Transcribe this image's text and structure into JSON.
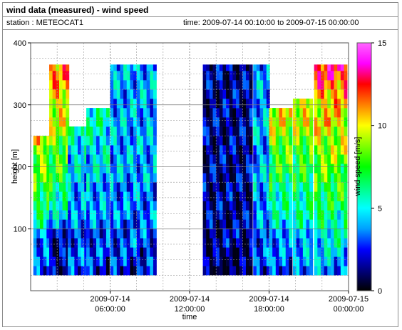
{
  "header": {
    "title": "wind data (measured) - wind speed",
    "station": "station : METEOCAT1",
    "time_range": "time: 2009-07-14 00:10:00 to 2009-07-15 00:00:00"
  },
  "chart_data": {
    "type": "heatmap",
    "xlabel": "time",
    "ylabel": "height [m]",
    "colorbar_label": "wind speed [m/s]",
    "x_ticks": [
      {
        "hours": 6,
        "line1": "2009-07-14",
        "line2": "06:00:00"
      },
      {
        "hours": 12,
        "line1": "2009-07-14",
        "line2": "12:00:00"
      },
      {
        "hours": 18,
        "line1": "2009-07-14",
        "line2": "18:00:00"
      },
      {
        "hours": 24,
        "line1": "2009-07-15",
        "line2": "00:00:00"
      }
    ],
    "xlim_hours": [
      0,
      24
    ],
    "ylim": [
      0,
      400
    ],
    "y_ticks": [
      100,
      200,
      300,
      400
    ],
    "colorbar_range": [
      0,
      15
    ],
    "colorbar_ticks": [
      0,
      5,
      10,
      15
    ],
    "grid": true,
    "colormap": [
      "#000000",
      "#000080",
      "#0000ff",
      "#00a0ff",
      "#00ffff",
      "#00ff80",
      "#00ff00",
      "#80ff00",
      "#ffff00",
      "#ff8000",
      "#ff0000",
      "#ff00ff",
      "#ff66ff"
    ],
    "heights_m": [
      40,
      55,
      70,
      85,
      100,
      115,
      130,
      145,
      160,
      175,
      190,
      205,
      220,
      235,
      250,
      265,
      280,
      295,
      310,
      325,
      340,
      355,
      365
    ],
    "segments": [
      {
        "start_h": 0.2,
        "end_h": 1.4,
        "top_m": 255,
        "bottom": [
          2.5,
          3,
          3.5,
          5,
          6,
          7,
          7.5,
          8,
          8.5,
          9.5,
          10.5,
          11,
          11.5,
          11.5,
          12,
          12
        ]
      },
      {
        "start_h": 1.4,
        "end_h": 2.8,
        "top_m": 365,
        "bottom": [
          1,
          1,
          1.5,
          2,
          3,
          4,
          5,
          6,
          6.5,
          7,
          7.5,
          8,
          8,
          8.5,
          9,
          9.5,
          10,
          10.5,
          10.5,
          11,
          11
        ]
      },
      {
        "start_h": 2.8,
        "end_h": 4.2,
        "top_m": 265,
        "bottom": [
          2.5,
          3,
          3,
          3.5,
          3.5,
          4,
          4,
          4.5,
          5,
          5,
          5.5,
          6,
          6,
          6.5,
          7
        ]
      },
      {
        "start_h": 4.2,
        "end_h": 6.0,
        "top_m": 305,
        "bottom": [
          2,
          2.5,
          3,
          3,
          3.5,
          3.5,
          4,
          4,
          4.5,
          4.5,
          5,
          5,
          5.5,
          5.5,
          6,
          6,
          6.5,
          7
        ]
      },
      {
        "start_h": 6.0,
        "end_h": 9.5,
        "top_m": 365,
        "bottom": [
          2,
          2.5,
          2.5,
          3,
          3,
          3,
          3.5,
          3.5,
          3.5,
          3.5,
          4,
          4,
          4,
          4,
          4,
          4,
          4,
          4,
          4,
          4,
          4,
          4,
          4
        ]
      },
      {
        "start_h": 13.0,
        "end_h": 16.8,
        "top_m": 365,
        "bottom": [
          0.5,
          1,
          1,
          1.5,
          1.5,
          1.5,
          1.5,
          1.5,
          1.5,
          1.5,
          1.5,
          1.5,
          1.5,
          1.5,
          1.5,
          1.5,
          1.5,
          1.5,
          1.5,
          1.5,
          1.5,
          1.5,
          1.5
        ]
      },
      {
        "start_h": 16.8,
        "end_h": 18.0,
        "top_m": 365,
        "bottom": [
          2,
          2.5,
          3,
          3,
          3.5,
          3.5,
          3.5,
          3.5,
          4,
          4,
          4,
          4,
          4,
          4,
          4,
          4,
          4,
          4,
          4,
          4,
          4,
          3.5,
          3.5
        ]
      },
      {
        "start_h": 18.0,
        "end_h": 19.8,
        "top_m": 300,
        "bottom": [
          2.5,
          3,
          3.5,
          4,
          4.5,
          5,
          5.5,
          6,
          6.5,
          7,
          7.5,
          8,
          8.5,
          9,
          9.5,
          10,
          10.5,
          11,
          11.5,
          12
        ]
      },
      {
        "start_h": 19.8,
        "end_h": 21.4,
        "top_m": 320,
        "bottom": [
          3,
          3.5,
          4,
          4.5,
          5,
          5.5,
          5.5,
          6,
          6.5,
          7,
          7,
          7.5,
          8,
          8.5,
          9,
          9.5,
          10,
          10.5,
          11,
          11.5,
          12
        ]
      },
      {
        "start_h": 21.4,
        "end_h": 24.0,
        "top_m": 365,
        "bottom": [
          3.5,
          4,
          4.5,
          5,
          5.5,
          6,
          6,
          6.5,
          7,
          7.5,
          8,
          8,
          8.5,
          9,
          9,
          9.5,
          10,
          10,
          10.5,
          11,
          11.5,
          12,
          12.5
        ]
      }
    ]
  }
}
